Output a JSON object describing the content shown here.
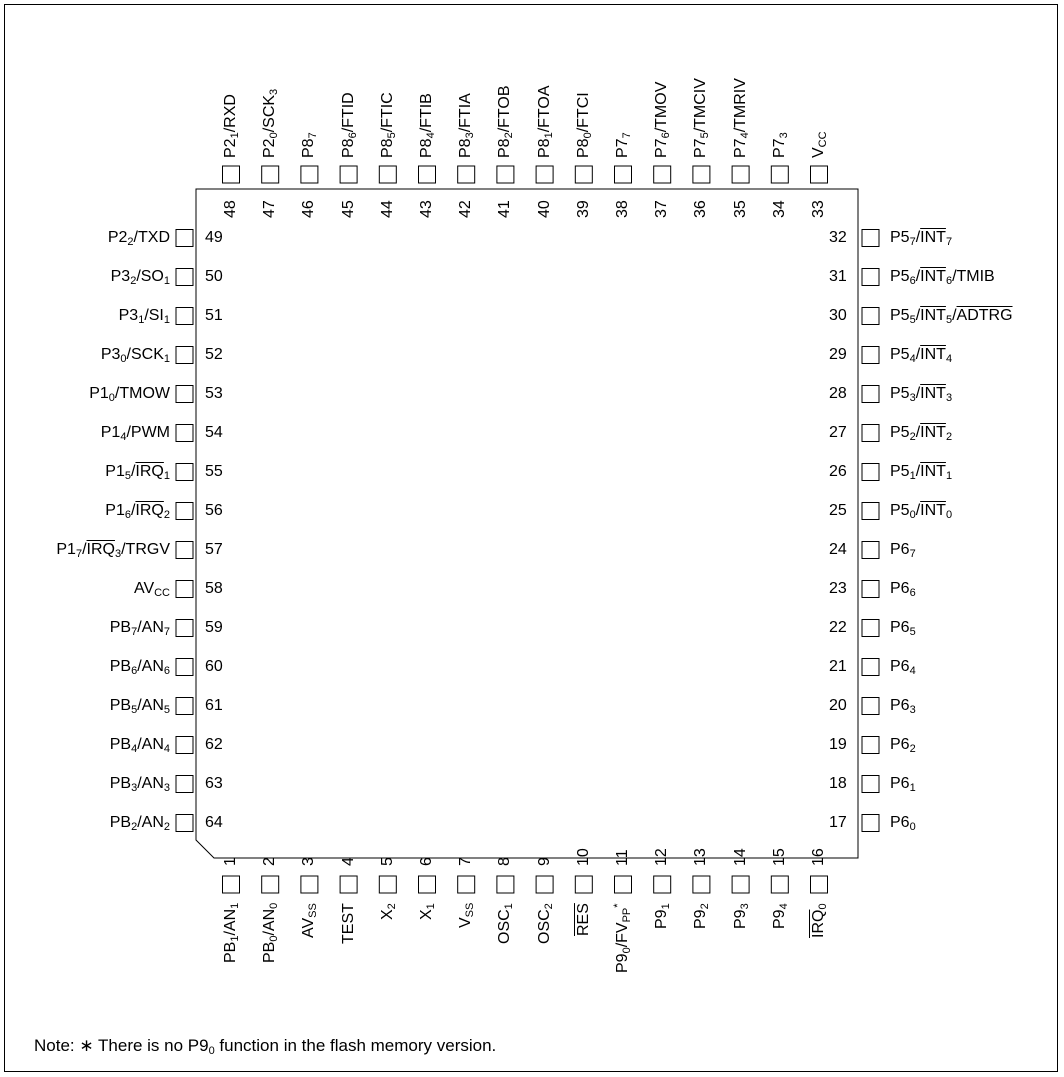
{
  "package": {
    "top": [
      {
        "num": "48",
        "label": [
          {
            "t": "P2"
          },
          {
            "t": "1",
            "sub": true
          },
          {
            "t": "/RXD"
          }
        ]
      },
      {
        "num": "47",
        "label": [
          {
            "t": "P2"
          },
          {
            "t": "0",
            "sub": true
          },
          {
            "t": "/SCK"
          },
          {
            "t": "3",
            "sub": true
          }
        ]
      },
      {
        "num": "46",
        "label": [
          {
            "t": "P8"
          },
          {
            "t": "7",
            "sub": true
          }
        ]
      },
      {
        "num": "45",
        "label": [
          {
            "t": "P8"
          },
          {
            "t": "6",
            "sub": true
          },
          {
            "t": "/FTID"
          }
        ]
      },
      {
        "num": "44",
        "label": [
          {
            "t": "P8"
          },
          {
            "t": "5",
            "sub": true
          },
          {
            "t": "/FTIC"
          }
        ]
      },
      {
        "num": "43",
        "label": [
          {
            "t": "P8"
          },
          {
            "t": "4",
            "sub": true
          },
          {
            "t": "/FTIB"
          }
        ]
      },
      {
        "num": "42",
        "label": [
          {
            "t": "P8"
          },
          {
            "t": "3",
            "sub": true
          },
          {
            "t": "/FTIA"
          }
        ]
      },
      {
        "num": "41",
        "label": [
          {
            "t": "P8"
          },
          {
            "t": "2",
            "sub": true
          },
          {
            "t": "/FTOB"
          }
        ]
      },
      {
        "num": "40",
        "label": [
          {
            "t": "P8"
          },
          {
            "t": "1",
            "sub": true
          },
          {
            "t": "/FTOA"
          }
        ]
      },
      {
        "num": "39",
        "label": [
          {
            "t": "P8"
          },
          {
            "t": "0",
            "sub": true
          },
          {
            "t": "/FTCI"
          }
        ]
      },
      {
        "num": "38",
        "label": [
          {
            "t": "P7"
          },
          {
            "t": "7",
            "sub": true
          }
        ]
      },
      {
        "num": "37",
        "label": [
          {
            "t": "P7"
          },
          {
            "t": "6",
            "sub": true
          },
          {
            "t": "/TMOV"
          }
        ]
      },
      {
        "num": "36",
        "label": [
          {
            "t": "P7"
          },
          {
            "t": "5",
            "sub": true
          },
          {
            "t": "/TMCIV"
          }
        ]
      },
      {
        "num": "35",
        "label": [
          {
            "t": "P7"
          },
          {
            "t": "4",
            "sub": true
          },
          {
            "t": "/TMRIV"
          }
        ]
      },
      {
        "num": "34",
        "label": [
          {
            "t": "P7"
          },
          {
            "t": "3",
            "sub": true
          }
        ]
      },
      {
        "num": "33",
        "label": [
          {
            "t": "V"
          },
          {
            "t": "CC",
            "sub": true
          }
        ]
      }
    ],
    "left": [
      {
        "num": "49",
        "label": [
          {
            "t": "P2"
          },
          {
            "t": "2",
            "sub": true
          },
          {
            "t": "/TXD"
          }
        ]
      },
      {
        "num": "50",
        "label": [
          {
            "t": "P3"
          },
          {
            "t": "2",
            "sub": true
          },
          {
            "t": "/SO"
          },
          {
            "t": "1",
            "sub": true
          }
        ]
      },
      {
        "num": "51",
        "label": [
          {
            "t": "P3"
          },
          {
            "t": "1",
            "sub": true
          },
          {
            "t": "/SI"
          },
          {
            "t": "1",
            "sub": true
          }
        ]
      },
      {
        "num": "52",
        "label": [
          {
            "t": "P3"
          },
          {
            "t": "0",
            "sub": true
          },
          {
            "t": "/SCK"
          },
          {
            "t": "1",
            "sub": true
          }
        ]
      },
      {
        "num": "53",
        "label": [
          {
            "t": "P1"
          },
          {
            "t": "0",
            "sub": true
          },
          {
            "t": "/TMOW"
          }
        ]
      },
      {
        "num": "54",
        "label": [
          {
            "t": "P1"
          },
          {
            "t": "4",
            "sub": true
          },
          {
            "t": "/PWM"
          }
        ]
      },
      {
        "num": "55",
        "label": [
          {
            "t": "P1"
          },
          {
            "t": "5",
            "sub": true
          },
          {
            "t": "/"
          },
          {
            "t": "IRQ",
            "ov": true
          },
          {
            "t": "1",
            "sub": true
          }
        ]
      },
      {
        "num": "56",
        "label": [
          {
            "t": "P1"
          },
          {
            "t": "6",
            "sub": true
          },
          {
            "t": "/"
          },
          {
            "t": "IRQ",
            "ov": true
          },
          {
            "t": "2",
            "sub": true
          }
        ]
      },
      {
        "num": "57",
        "label": [
          {
            "t": "P1"
          },
          {
            "t": "7",
            "sub": true
          },
          {
            "t": "/"
          },
          {
            "t": "IRQ",
            "ov": true
          },
          {
            "t": "3",
            "sub": true
          },
          {
            "t": "/TRGV"
          }
        ]
      },
      {
        "num": "58",
        "label": [
          {
            "t": "AV"
          },
          {
            "t": "CC",
            "sub": true
          }
        ]
      },
      {
        "num": "59",
        "label": [
          {
            "t": "PB"
          },
          {
            "t": "7",
            "sub": true
          },
          {
            "t": "/AN"
          },
          {
            "t": "7",
            "sub": true
          }
        ]
      },
      {
        "num": "60",
        "label": [
          {
            "t": "PB"
          },
          {
            "t": "6",
            "sub": true
          },
          {
            "t": "/AN"
          },
          {
            "t": "6",
            "sub": true
          }
        ]
      },
      {
        "num": "61",
        "label": [
          {
            "t": "PB"
          },
          {
            "t": "5",
            "sub": true
          },
          {
            "t": "/AN"
          },
          {
            "t": "5",
            "sub": true
          }
        ]
      },
      {
        "num": "62",
        "label": [
          {
            "t": "PB"
          },
          {
            "t": "4",
            "sub": true
          },
          {
            "t": "/AN"
          },
          {
            "t": "4",
            "sub": true
          }
        ]
      },
      {
        "num": "63",
        "label": [
          {
            "t": "PB"
          },
          {
            "t": "3",
            "sub": true
          },
          {
            "t": "/AN"
          },
          {
            "t": "3",
            "sub": true
          }
        ]
      },
      {
        "num": "64",
        "label": [
          {
            "t": "PB"
          },
          {
            "t": "2",
            "sub": true
          },
          {
            "t": "/AN"
          },
          {
            "t": "2",
            "sub": true
          }
        ]
      }
    ],
    "right": [
      {
        "num": "32",
        "label": [
          {
            "t": "P5"
          },
          {
            "t": "7",
            "sub": true
          },
          {
            "t": "/"
          },
          {
            "t": "INT",
            "ov": true
          },
          {
            "t": "7",
            "sub": true
          }
        ]
      },
      {
        "num": "31",
        "label": [
          {
            "t": "P5"
          },
          {
            "t": "6",
            "sub": true
          },
          {
            "t": "/"
          },
          {
            "t": "INT",
            "ov": true
          },
          {
            "t": "6",
            "sub": true
          },
          {
            "t": "/TMIB"
          }
        ]
      },
      {
        "num": "30",
        "label": [
          {
            "t": "P5"
          },
          {
            "t": "5",
            "sub": true
          },
          {
            "t": "/"
          },
          {
            "t": "INT",
            "ov": true
          },
          {
            "t": "5",
            "sub": true
          },
          {
            "t": "/"
          },
          {
            "t": "ADTRG",
            "ov": true
          }
        ]
      },
      {
        "num": "29",
        "label": [
          {
            "t": "P5"
          },
          {
            "t": "4",
            "sub": true
          },
          {
            "t": "/"
          },
          {
            "t": "INT",
            "ov": true
          },
          {
            "t": "4",
            "sub": true
          }
        ]
      },
      {
        "num": "28",
        "label": [
          {
            "t": "P5"
          },
          {
            "t": "3",
            "sub": true
          },
          {
            "t": "/"
          },
          {
            "t": "INT",
            "ov": true
          },
          {
            "t": "3",
            "sub": true
          }
        ]
      },
      {
        "num": "27",
        "label": [
          {
            "t": "P5"
          },
          {
            "t": "2",
            "sub": true
          },
          {
            "t": "/"
          },
          {
            "t": "INT",
            "ov": true
          },
          {
            "t": "2",
            "sub": true
          }
        ]
      },
      {
        "num": "26",
        "label": [
          {
            "t": "P5"
          },
          {
            "t": "1",
            "sub": true
          },
          {
            "t": "/"
          },
          {
            "t": "INT",
            "ov": true
          },
          {
            "t": "1",
            "sub": true
          }
        ]
      },
      {
        "num": "25",
        "label": [
          {
            "t": "P5"
          },
          {
            "t": "0",
            "sub": true
          },
          {
            "t": "/"
          },
          {
            "t": "INT",
            "ov": true
          },
          {
            "t": "0",
            "sub": true
          }
        ]
      },
      {
        "num": "24",
        "label": [
          {
            "t": "P6"
          },
          {
            "t": "7",
            "sub": true
          }
        ]
      },
      {
        "num": "23",
        "label": [
          {
            "t": "P6"
          },
          {
            "t": "6",
            "sub": true
          }
        ]
      },
      {
        "num": "22",
        "label": [
          {
            "t": "P6"
          },
          {
            "t": "5",
            "sub": true
          }
        ]
      },
      {
        "num": "21",
        "label": [
          {
            "t": "P6"
          },
          {
            "t": "4",
            "sub": true
          }
        ]
      },
      {
        "num": "20",
        "label": [
          {
            "t": "P6"
          },
          {
            "t": "3",
            "sub": true
          }
        ]
      },
      {
        "num": "19",
        "label": [
          {
            "t": "P6"
          },
          {
            "t": "2",
            "sub": true
          }
        ]
      },
      {
        "num": "18",
        "label": [
          {
            "t": "P6"
          },
          {
            "t": "1",
            "sub": true
          }
        ]
      },
      {
        "num": "17",
        "label": [
          {
            "t": "P6"
          },
          {
            "t": "0",
            "sub": true
          }
        ]
      }
    ],
    "bottom": [
      {
        "num": "1",
        "label": [
          {
            "t": "PB"
          },
          {
            "t": "1",
            "sub": true
          },
          {
            "t": "/AN"
          },
          {
            "t": "1",
            "sub": true
          }
        ]
      },
      {
        "num": "2",
        "label": [
          {
            "t": "PB"
          },
          {
            "t": "0",
            "sub": true
          },
          {
            "t": "/AN"
          },
          {
            "t": "0",
            "sub": true
          }
        ]
      },
      {
        "num": "3",
        "label": [
          {
            "t": "AV"
          },
          {
            "t": "SS",
            "sub": true
          }
        ]
      },
      {
        "num": "4",
        "label": [
          {
            "t": "TEST"
          }
        ]
      },
      {
        "num": "5",
        "label": [
          {
            "t": "X"
          },
          {
            "t": "2",
            "sub": true
          }
        ]
      },
      {
        "num": "6",
        "label": [
          {
            "t": "X"
          },
          {
            "t": "1",
            "sub": true
          }
        ]
      },
      {
        "num": "7",
        "label": [
          {
            "t": "V"
          },
          {
            "t": "SS",
            "sub": true
          }
        ]
      },
      {
        "num": "8",
        "label": [
          {
            "t": "OSC"
          },
          {
            "t": "1",
            "sub": true
          }
        ]
      },
      {
        "num": "9",
        "label": [
          {
            "t": "OSC"
          },
          {
            "t": "2",
            "sub": true
          }
        ]
      },
      {
        "num": "10",
        "label": [
          {
            "t": "RES",
            "ov": true
          }
        ]
      },
      {
        "num": "11",
        "label": [
          {
            "t": "P9"
          },
          {
            "t": "0",
            "sub": true
          },
          {
            "t": "/FV"
          },
          {
            "t": "PP",
            "sub": true
          },
          {
            "t": "*",
            "sup": true
          }
        ]
      },
      {
        "num": "12",
        "label": [
          {
            "t": "P9"
          },
          {
            "t": "1",
            "sub": true
          }
        ]
      },
      {
        "num": "13",
        "label": [
          {
            "t": "P9"
          },
          {
            "t": "2",
            "sub": true
          }
        ]
      },
      {
        "num": "14",
        "label": [
          {
            "t": "P9"
          },
          {
            "t": "3",
            "sub": true
          }
        ]
      },
      {
        "num": "15",
        "label": [
          {
            "t": "P9"
          },
          {
            "t": "4",
            "sub": true
          }
        ]
      },
      {
        "num": "16",
        "label": [
          {
            "t": "IRQ",
            "ov": true
          },
          {
            "t": "0",
            "sub": true
          }
        ]
      }
    ]
  },
  "note": [
    {
      "t": "Note:  "
    },
    {
      "t": "∗ There is no P9"
    },
    {
      "t": "0",
      "sub": true
    },
    {
      "t": " function in the flash memory version."
    }
  ]
}
